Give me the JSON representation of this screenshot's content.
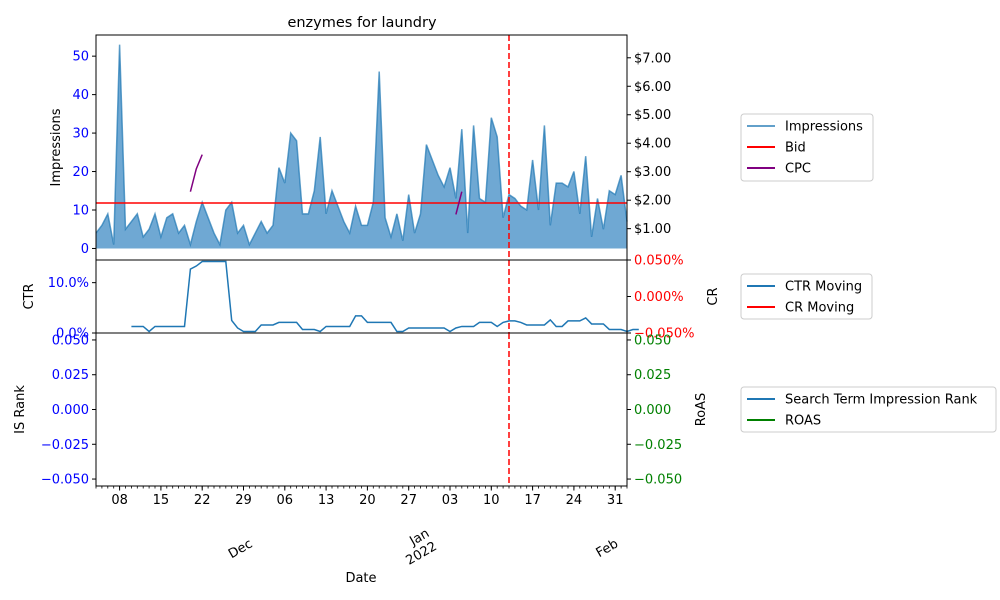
{
  "chart_data": {
    "type": "line",
    "title": "enzymes for laundry",
    "xlabel": "Date",
    "x_range": [
      "2021-11-04",
      "2022-02-02"
    ],
    "x_ticks": {
      "day_labels": [
        "08",
        "15",
        "22",
        "29",
        "06",
        "13",
        "20",
        "27",
        "03",
        "10",
        "17",
        "24",
        "31"
      ],
      "day_dates": [
        "2021-11-08",
        "2021-11-15",
        "2021-11-22",
        "2021-11-29",
        "2021-12-06",
        "2021-12-13",
        "2021-12-20",
        "2021-12-27",
        "2022-01-03",
        "2022-01-10",
        "2022-01-17",
        "2022-01-24",
        "2022-01-31"
      ],
      "month_labels": [
        {
          "date": "2021-12-01",
          "text": "Dec"
        },
        {
          "date": "2022-01-01",
          "text": "Jan\n2022"
        },
        {
          "date": "2022-02-01",
          "text": "Feb"
        }
      ]
    },
    "vline_date": "2022-01-13",
    "panels": [
      {
        "id": "top",
        "ylabel_left": "Impressions",
        "ylabel_right": "",
        "ylim_left": [
          -3,
          55.5
        ],
        "yticks_left": [
          "0",
          "10",
          "20",
          "30",
          "40",
          "50"
        ],
        "ytick_values_left": [
          0,
          10,
          20,
          30,
          40,
          50
        ],
        "ylim_right": [
          -0.1,
          7.8
        ],
        "yticks_right": [
          "$1.00",
          "$2.00",
          "$3.00",
          "$4.00",
          "$5.00",
          "$6.00",
          "$7.00"
        ],
        "ytick_values_right": [
          1,
          2,
          3,
          4,
          5,
          6,
          7
        ],
        "series": [
          {
            "name": "Impressions",
            "axis": "left",
            "color": "#1f77b4",
            "start_date": "2021-11-04",
            "values": [
              4,
              6,
              9,
              1,
              53,
              5,
              7,
              9,
              3,
              5,
              9,
              3,
              8,
              9,
              4,
              6,
              1,
              7,
              12,
              8,
              4,
              1,
              10,
              12,
              4,
              6,
              1,
              4,
              7,
              4,
              6,
              21,
              17,
              30,
              28,
              9,
              9,
              15,
              29,
              9,
              15,
              11,
              7,
              4,
              11,
              6,
              6,
              12,
              46,
              8,
              3,
              9,
              2,
              14,
              4,
              9,
              27,
              23,
              19,
              16,
              21,
              13,
              31,
              4,
              32,
              13,
              12,
              34,
              29,
              8,
              14,
              13,
              11,
              10,
              23,
              10,
              32,
              6,
              17,
              17,
              16,
              20,
              9,
              24,
              3,
              13,
              5,
              15,
              14,
              19,
              7
            ]
          },
          {
            "name": "Bid",
            "axis": "right",
            "color": "#ff0000",
            "constant": 1.9
          },
          {
            "name": "CPC",
            "axis": "right",
            "color": "#800080",
            "segments": [
              {
                "dates": [
                  "2021-11-20",
                  "2021-11-21",
                  "2021-11-22"
                ],
                "values": [
                  2.3,
                  3.1,
                  3.6
                ]
              },
              {
                "dates": [
                  "2022-01-04",
                  "2022-01-05"
                ],
                "values": [
                  1.5,
                  2.3
                ]
              }
            ]
          }
        ],
        "legend": [
          "Impressions",
          "Bid",
          "CPC"
        ]
      },
      {
        "id": "middle",
        "ylabel_left": "CTR",
        "ylabel_right": "CR",
        "ylim_left": [
          0,
          0.145
        ],
        "yticks_left": [
          "0.0%",
          "10.0%"
        ],
        "ytick_values_left": [
          0,
          0.1
        ],
        "ylim_right": [
          -0.05,
          0.05
        ],
        "yticks_right": [
          "−0.050%",
          "0.000%",
          "0.050%"
        ],
        "ytick_values_right": [
          -0.05,
          0,
          0.05
        ],
        "series": [
          {
            "name": "CTR Moving",
            "axis": "left",
            "color": "#1f77b4",
            "start_date": "2021-11-10",
            "values": [
              0.013,
              0.013,
              0.013,
              0.003,
              0.013,
              0.013,
              0.013,
              0.013,
              0.013,
              0.013,
              0.127,
              0.133,
              0.142,
              0.142,
              0.142,
              0.142,
              0.142,
              0.025,
              0.01,
              0.003,
              0.003,
              0.003,
              0.016,
              0.016,
              0.016,
              0.021,
              0.021,
              0.021,
              0.021,
              0.007,
              0.007,
              0.007,
              0.003,
              0.013,
              0.013,
              0.013,
              0.013,
              0.013,
              0.034,
              0.034,
              0.021,
              0.021,
              0.021,
              0.021,
              0.021,
              0.003,
              0.003,
              0.01,
              0.01,
              0.01,
              0.01,
              0.01,
              0.01,
              0.01,
              0.003,
              0.01,
              0.013,
              0.013,
              0.013,
              0.021,
              0.021,
              0.021,
              0.013,
              0.021,
              0.024,
              0.024,
              0.021,
              0.016,
              0.016,
              0.016,
              0.016,
              0.026,
              0.013,
              0.013,
              0.024,
              0.024,
              0.024,
              0.03,
              0.018,
              0.018,
              0.018,
              0.007,
              0.007,
              0.007,
              0.003,
              0.007,
              0.007
            ]
          },
          {
            "name": "CR Moving",
            "axis": "right",
            "color": "#ff0000",
            "values": []
          }
        ],
        "legend": [
          "CTR Moving",
          "CR Moving"
        ]
      },
      {
        "id": "bottom",
        "ylabel_left": "IS Rank",
        "ylabel_right": "RoAS",
        "ylim_left": [
          -0.055,
          0.055
        ],
        "yticks_left": [
          "−0.050",
          "−0.025",
          "0.000",
          "0.025",
          "0.050"
        ],
        "ytick_values_left": [
          -0.05,
          -0.025,
          0,
          0.025,
          0.05
        ],
        "ylim_right": [
          -0.055,
          0.055
        ],
        "yticks_right": [
          "−0.050",
          "−0.025",
          "0.000",
          "0.025",
          "0.050"
        ],
        "ytick_values_right": [
          -0.05,
          -0.025,
          0,
          0.025,
          0.05
        ],
        "series": [
          {
            "name": "Search Term Impression Rank",
            "axis": "left",
            "color": "#1f77b4",
            "values": []
          },
          {
            "name": "ROAS",
            "axis": "right",
            "color": "#008000",
            "values": []
          }
        ],
        "legend": [
          "Search Term Impression Rank",
          "ROAS"
        ]
      }
    ],
    "colors": {
      "left_tick": "#0000ff",
      "right_tick_top": "#000000",
      "right_tick_middle": "#ff0000",
      "right_tick_bottom": "#008000",
      "impressions_fill": "#6fa8d3",
      "vline": "#ff0000"
    }
  }
}
